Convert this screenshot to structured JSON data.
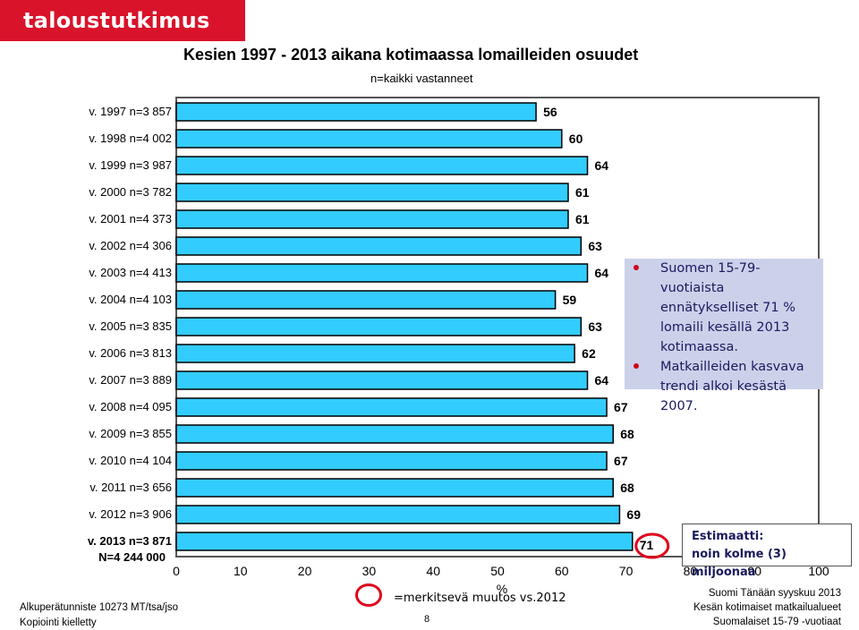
{
  "brand": {
    "logo_text": "taloustutkimus oy",
    "color": "#d9132a"
  },
  "chart_data": {
    "type": "bar",
    "orientation": "horizontal",
    "title": "Kesien 1997 - 2013 aikana kotimaassa lomailleiden osuudet",
    "subtitle": "n=kaikki vastanneet",
    "categories": [
      "v. 1997 n=3 857",
      "v. 1998 n=4 002",
      "v. 1999 n=3 987",
      "v. 2000 n=3 782",
      "v. 2001 n=4 373",
      "v. 2002 n=4 306",
      "v. 2003 n=4 413",
      "v. 2004 n=4 103",
      "v. 2005 n=3 835",
      "v. 2006 n=3 813",
      "v. 2007 n=3 889",
      "v. 2008 n=4 095",
      "v. 2009 n=3 855",
      "v. 2010 n=4 104",
      "v. 2011 n=3 656",
      "v. 2012 n=3 906",
      "v. 2013 n=3 871"
    ],
    "last_category_extra": "N=4 244 000",
    "values": [
      56,
      60,
      64,
      61,
      61,
      63,
      64,
      59,
      63,
      62,
      64,
      67,
      68,
      67,
      68,
      69,
      71
    ],
    "highlight_index": 16,
    "xlim": [
      0,
      100
    ],
    "xticks": [
      0,
      10,
      20,
      30,
      40,
      50,
      60,
      70,
      80,
      90,
      100
    ],
    "xlabel": "%",
    "bar_fill": "#33ccff",
    "bar_edge": "#000000",
    "highlight_color": "#e0001a"
  },
  "note": {
    "bullets": [
      "Suomen 15-79-vuotiaista ennätykselliset 71 % lomaili kesällä 2013 kotimaassa.",
      "Matkailleiden kasvava trendi alkoi kesästä 2007."
    ]
  },
  "estimate": {
    "line1": "Estimaatti:",
    "line2": "noin kolme (3) miljoonaa"
  },
  "legend": {
    "text": "=merkitsevä muutos vs.2012"
  },
  "footer": {
    "left1": "Alkuperätunniste 10273 MT/tsa/jso",
    "left2": "Kopiointi kielletty",
    "page": "8",
    "right1": "Suomi Tänään syyskuu 2013",
    "right2": "Kesän kotimaiset matkailualueet",
    "right3": "Suomalaiset 15-79 -vuotiaat"
  }
}
